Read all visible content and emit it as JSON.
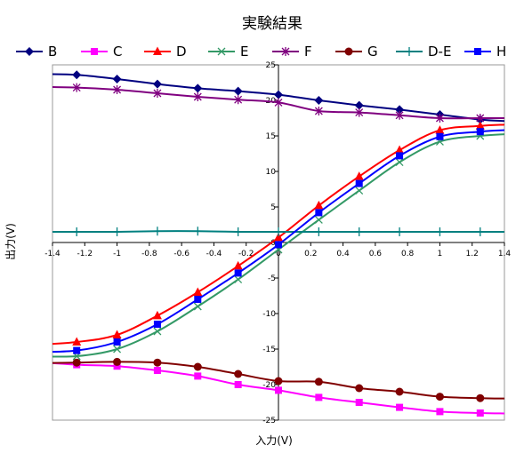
{
  "chart_data": {
    "type": "line",
    "title": "実験結果",
    "xlabel": "入力(V)",
    "ylabel": "出力(V)",
    "xlim": [
      -1.4,
      1.4
    ],
    "ylim": [
      -25,
      25
    ],
    "x_ticks": [
      "-1.4",
      "-1.2",
      "-1",
      "-0.8",
      "-0.6",
      "-0.4",
      "-0.2",
      "0",
      "0.2",
      "0.4",
      "0.6",
      "0.8",
      "1",
      "1.2",
      "1.4"
    ],
    "y_ticks": [
      "-25",
      "-20",
      "-15",
      "-10",
      "-5",
      "0",
      "5",
      "10",
      "15",
      "20",
      "25"
    ],
    "grid": false,
    "legend_position": "top",
    "x": [
      -1.5,
      -1.25,
      -1.0,
      -0.75,
      -0.5,
      -0.25,
      0,
      0.25,
      0.5,
      0.75,
      1.0,
      1.25
    ],
    "series": [
      {
        "name": "B",
        "color": "#000080",
        "marker": "diamond",
        "values": [
          23.7,
          23.6,
          23.0,
          22.3,
          21.7,
          21.3,
          20.8,
          20.0,
          19.3,
          18.7,
          18.0,
          17.3
        ]
      },
      {
        "name": "C",
        "color": "#ff00ff",
        "marker": "square",
        "values": [
          -16.8,
          -17.2,
          -17.4,
          -18.0,
          -18.8,
          -20.0,
          -20.8,
          -21.8,
          -22.5,
          -23.2,
          -23.8,
          -24.0
        ]
      },
      {
        "name": "D",
        "color": "#ff0000",
        "marker": "triangle",
        "values": [
          -14.4,
          -14.0,
          -13.0,
          -10.3,
          -7.0,
          -3.3,
          0.7,
          5.2,
          9.3,
          13.0,
          15.8,
          16.4
        ]
      },
      {
        "name": "E",
        "color": "#339966",
        "marker": "x",
        "values": [
          -16.0,
          -16.0,
          -15.0,
          -12.5,
          -9.0,
          -5.2,
          -1.0,
          3.2,
          7.3,
          11.3,
          14.2,
          15.0
        ]
      },
      {
        "name": "F",
        "color": "#800080",
        "marker": "star",
        "values": [
          21.9,
          21.8,
          21.5,
          21.0,
          20.5,
          20.1,
          19.7,
          18.5,
          18.3,
          17.9,
          17.5,
          17.5
        ]
      },
      {
        "name": "G",
        "color": "#800000",
        "marker": "circle",
        "values": [
          -17.0,
          -16.9,
          -16.8,
          -16.9,
          -17.5,
          -18.5,
          -19.5,
          -19.6,
          -20.5,
          -21.0,
          -21.7,
          -21.9
        ]
      },
      {
        "name": "D-E",
        "color": "#008080",
        "marker": "plus",
        "values": [
          1.5,
          1.5,
          1.5,
          1.6,
          1.6,
          1.5,
          1.5,
          1.5,
          1.5,
          1.5,
          1.5,
          1.5
        ]
      },
      {
        "name": "H",
        "color": "#0000ff",
        "marker": "square",
        "values": [
          -15.4,
          -15.2,
          -14.0,
          -11.5,
          -8.0,
          -4.3,
          -0.3,
          4.2,
          8.3,
          12.2,
          14.9,
          15.6
        ]
      }
    ]
  }
}
